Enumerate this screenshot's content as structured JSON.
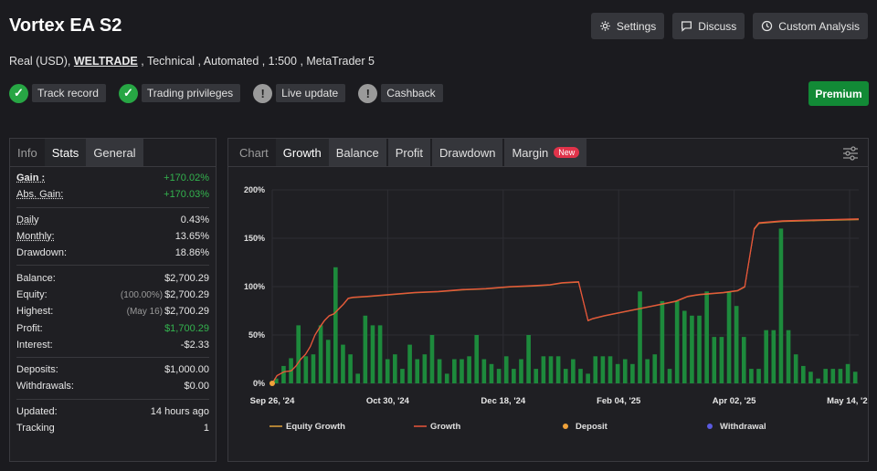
{
  "header": {
    "title": "Vortex EA S2",
    "settings_label": "Settings",
    "discuss_label": "Discuss",
    "custom_analysis_label": "Custom Analysis",
    "subtitle_before": "Real (USD),",
    "subtitle_link": "WELTRADE",
    "subtitle_after": ", Technical , Automated , 1:500 , MetaTrader 5",
    "premium_label": "Premium"
  },
  "badges": [
    {
      "label": "Track record",
      "status": "ok"
    },
    {
      "label": "Trading privileges",
      "status": "ok"
    },
    {
      "label": "Live update",
      "status": "warn"
    },
    {
      "label": "Cashback",
      "status": "warn"
    }
  ],
  "stats": {
    "tabs": [
      "Info",
      "Stats",
      "General"
    ],
    "gain_label": "Gain :",
    "gain_value": "+170.02%",
    "abs_gain_label": "Abs. Gain:",
    "abs_gain_value": "+170.03%",
    "daily_label": "Daily",
    "daily_value": "0.43%",
    "monthly_label": "Monthly:",
    "monthly_value": "13.65%",
    "drawdown_label": "Drawdown:",
    "drawdown_value": "18.86%",
    "balance_label": "Balance:",
    "balance_value": "$2,700.29",
    "equity_label": "Equity:",
    "equity_note": "(100.00%)",
    "equity_value": "$2,700.29",
    "highest_label": "Highest:",
    "highest_note": "(May 16)",
    "highest_value": "$2,700.29",
    "profit_label": "Profit:",
    "profit_value": "$1,700.29",
    "interest_label": "Interest:",
    "interest_value": "-$2.33",
    "deposits_label": "Deposits:",
    "deposits_value": "$1,000.00",
    "withdrawals_label": "Withdrawals:",
    "withdrawals_value": "$0.00",
    "updated_label": "Updated:",
    "updated_value": "14 hours ago",
    "tracking_label": "Tracking",
    "tracking_value": "1"
  },
  "chart_panel": {
    "tabs": [
      "Chart",
      "Growth",
      "Balance",
      "Profit",
      "Drawdown",
      "Margin"
    ],
    "new_badge": "New"
  },
  "colors": {
    "growth_line": "#e8553a",
    "equity_line": "#e0a23a",
    "bars": "#1d8a3c",
    "deposit": "#f0a23a",
    "withdrawal": "#5a5ae0"
  },
  "chart_data": {
    "type": "bar+line",
    "x_labels": [
      "Sep 26, '24",
      "Oct 30, '24",
      "Dec 18, '24",
      "Feb 04, '25",
      "Apr 02, '25",
      "May 14, '25"
    ],
    "y_ticks": [
      "0%",
      "50%",
      "100%",
      "150%",
      "200%"
    ],
    "ylim": [
      0,
      200
    ],
    "legend": [
      "Equity Growth",
      "Growth",
      "Deposit",
      "Withdrawal"
    ],
    "bars": [
      5,
      18,
      26,
      60,
      28,
      30,
      60,
      45,
      120,
      40,
      30,
      10,
      70,
      60,
      60,
      25,
      30,
      15,
      40,
      25,
      30,
      50,
      25,
      10,
      25,
      25,
      28,
      50,
      25,
      20,
      15,
      28,
      15,
      25,
      50,
      15,
      28,
      28,
      28,
      15,
      25,
      15,
      10,
      28,
      28,
      28,
      20,
      25,
      20,
      95,
      25,
      30,
      85,
      15,
      85,
      75,
      70,
      70,
      95,
      48,
      48,
      95,
      80,
      48,
      15,
      15,
      55,
      55,
      160,
      55,
      30,
      18,
      12,
      5,
      15,
      15,
      15,
      20,
      12
    ],
    "growth": [
      [
        0,
        0
      ],
      [
        2,
        8
      ],
      [
        5,
        12
      ],
      [
        8,
        13
      ],
      [
        10,
        18
      ],
      [
        12,
        25
      ],
      [
        14,
        30
      ],
      [
        16,
        38
      ],
      [
        18,
        50
      ],
      [
        20,
        58
      ],
      [
        22,
        65
      ],
      [
        24,
        70
      ],
      [
        26,
        72
      ],
      [
        28,
        77
      ],
      [
        30,
        82
      ],
      [
        32,
        88
      ],
      [
        34,
        89
      ],
      [
        40,
        90
      ],
      [
        50,
        92
      ],
      [
        60,
        94
      ],
      [
        70,
        95
      ],
      [
        80,
        97
      ],
      [
        90,
        98
      ],
      [
        100,
        100
      ],
      [
        110,
        101
      ],
      [
        117,
        102
      ],
      [
        122,
        104
      ],
      [
        129,
        105
      ],
      [
        132,
        75
      ],
      [
        133,
        65
      ],
      [
        135,
        67
      ],
      [
        140,
        70
      ],
      [
        150,
        75
      ],
      [
        160,
        80
      ],
      [
        170,
        85
      ],
      [
        175,
        90
      ],
      [
        180,
        92
      ],
      [
        190,
        94
      ],
      [
        196,
        96
      ],
      [
        199,
        100
      ],
      [
        201,
        130
      ],
      [
        203,
        160
      ],
      [
        205,
        166
      ],
      [
        215,
        168
      ],
      [
        230,
        169
      ],
      [
        247,
        170
      ]
    ],
    "x_domain": [
      0,
      247
    ]
  }
}
